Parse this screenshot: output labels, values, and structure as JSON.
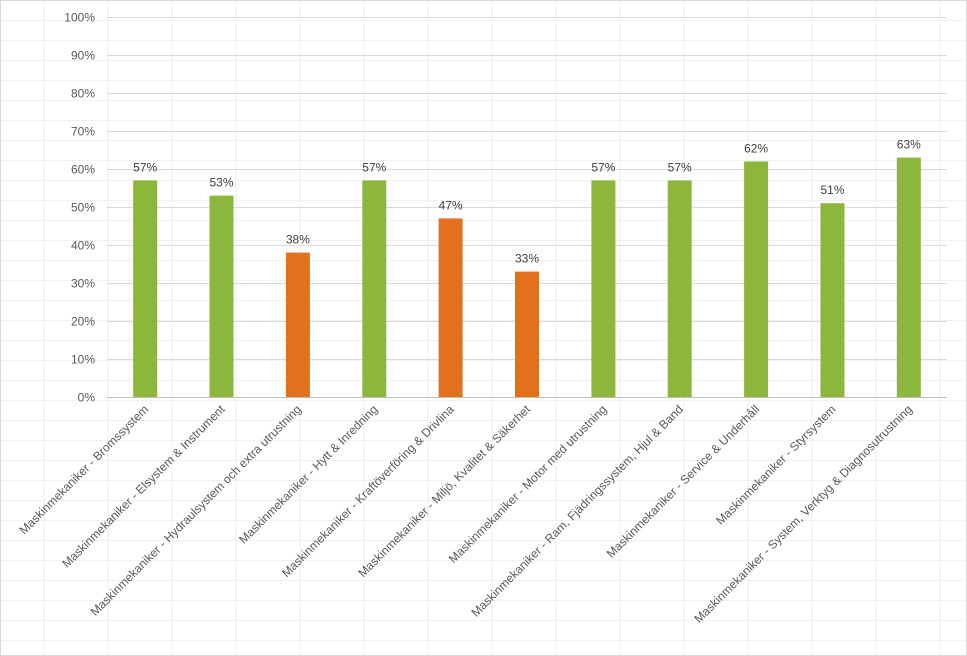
{
  "chart_data": {
    "type": "bar",
    "title": "",
    "xlabel": "",
    "ylabel": "",
    "ylim": [
      0,
      100
    ],
    "ytick_step": 10,
    "ytick_suffix": "%",
    "grid": true,
    "legend": "none",
    "colors": {
      "above_threshold": "#8db63c",
      "below_threshold": "#e2711d",
      "grid": "#d9d9d9"
    },
    "color_threshold": 50,
    "categories": [
      "Maskinmekaniker - Bromssystem",
      "Maskinmekaniker - Elsystem & Instrument",
      "Maskinmekaniker - Hydraulsystem och extra utrustning",
      "Maskinmekaniker - Hytt & Inredning",
      "Maskinmekaniker - Kraftöverföring & Drivlina",
      "Maskinmekaniker - Miljö, Kvalitet & Säkerhet",
      "Maskinmekaniker - Motor med utrustning",
      "Maskinmekaniker - Ram, Fjädringssystem, Hjul & Band",
      "Maskinmekaniker - Service & Underhåll",
      "Maskinmekaniker - Styrsystem",
      "Maskinmekaniker - System, Verktyg & Diagnosutrustning"
    ],
    "values": [
      57,
      53,
      38,
      57,
      47,
      33,
      57,
      57,
      62,
      51,
      63
    ],
    "data_labels": [
      "57%",
      "53%",
      "38%",
      "57%",
      "47%",
      "33%",
      "57%",
      "57%",
      "62%",
      "51%",
      "63%"
    ]
  }
}
